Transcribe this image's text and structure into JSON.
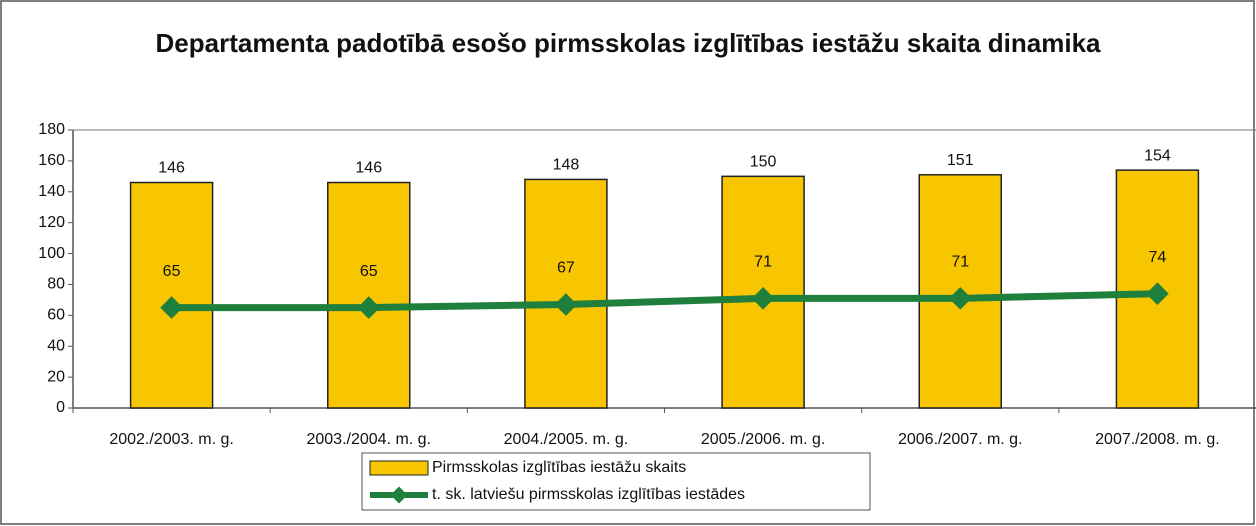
{
  "chart_data": {
    "type": "bar",
    "title": "Departamenta padotībā esošo pirmsskolas izglītības iestāžu skaita dinamika",
    "categories": [
      "2002./2003. m. g.",
      "2003./2004. m. g.",
      "2004./2005. m. g.",
      "2005./2006. m. g.",
      "2006./2007. m. g.",
      "2007./2008. m. g."
    ],
    "series": [
      {
        "name": "Pirmsskolas izglītības iestāžu skaits",
        "type": "bar",
        "color": "#f7c600",
        "values": [
          146,
          146,
          148,
          150,
          151,
          154
        ]
      },
      {
        "name": "t. sk. latviešu pirmsskolas izglītības iestādes",
        "type": "line",
        "color": "#1f7f3c",
        "values": [
          65,
          65,
          67,
          71,
          71,
          74
        ]
      }
    ],
    "ylim": [
      0,
      180
    ],
    "yticks": [
      0,
      20,
      40,
      60,
      80,
      100,
      120,
      140,
      160,
      180
    ],
    "grid": false,
    "legend": "bottom"
  }
}
